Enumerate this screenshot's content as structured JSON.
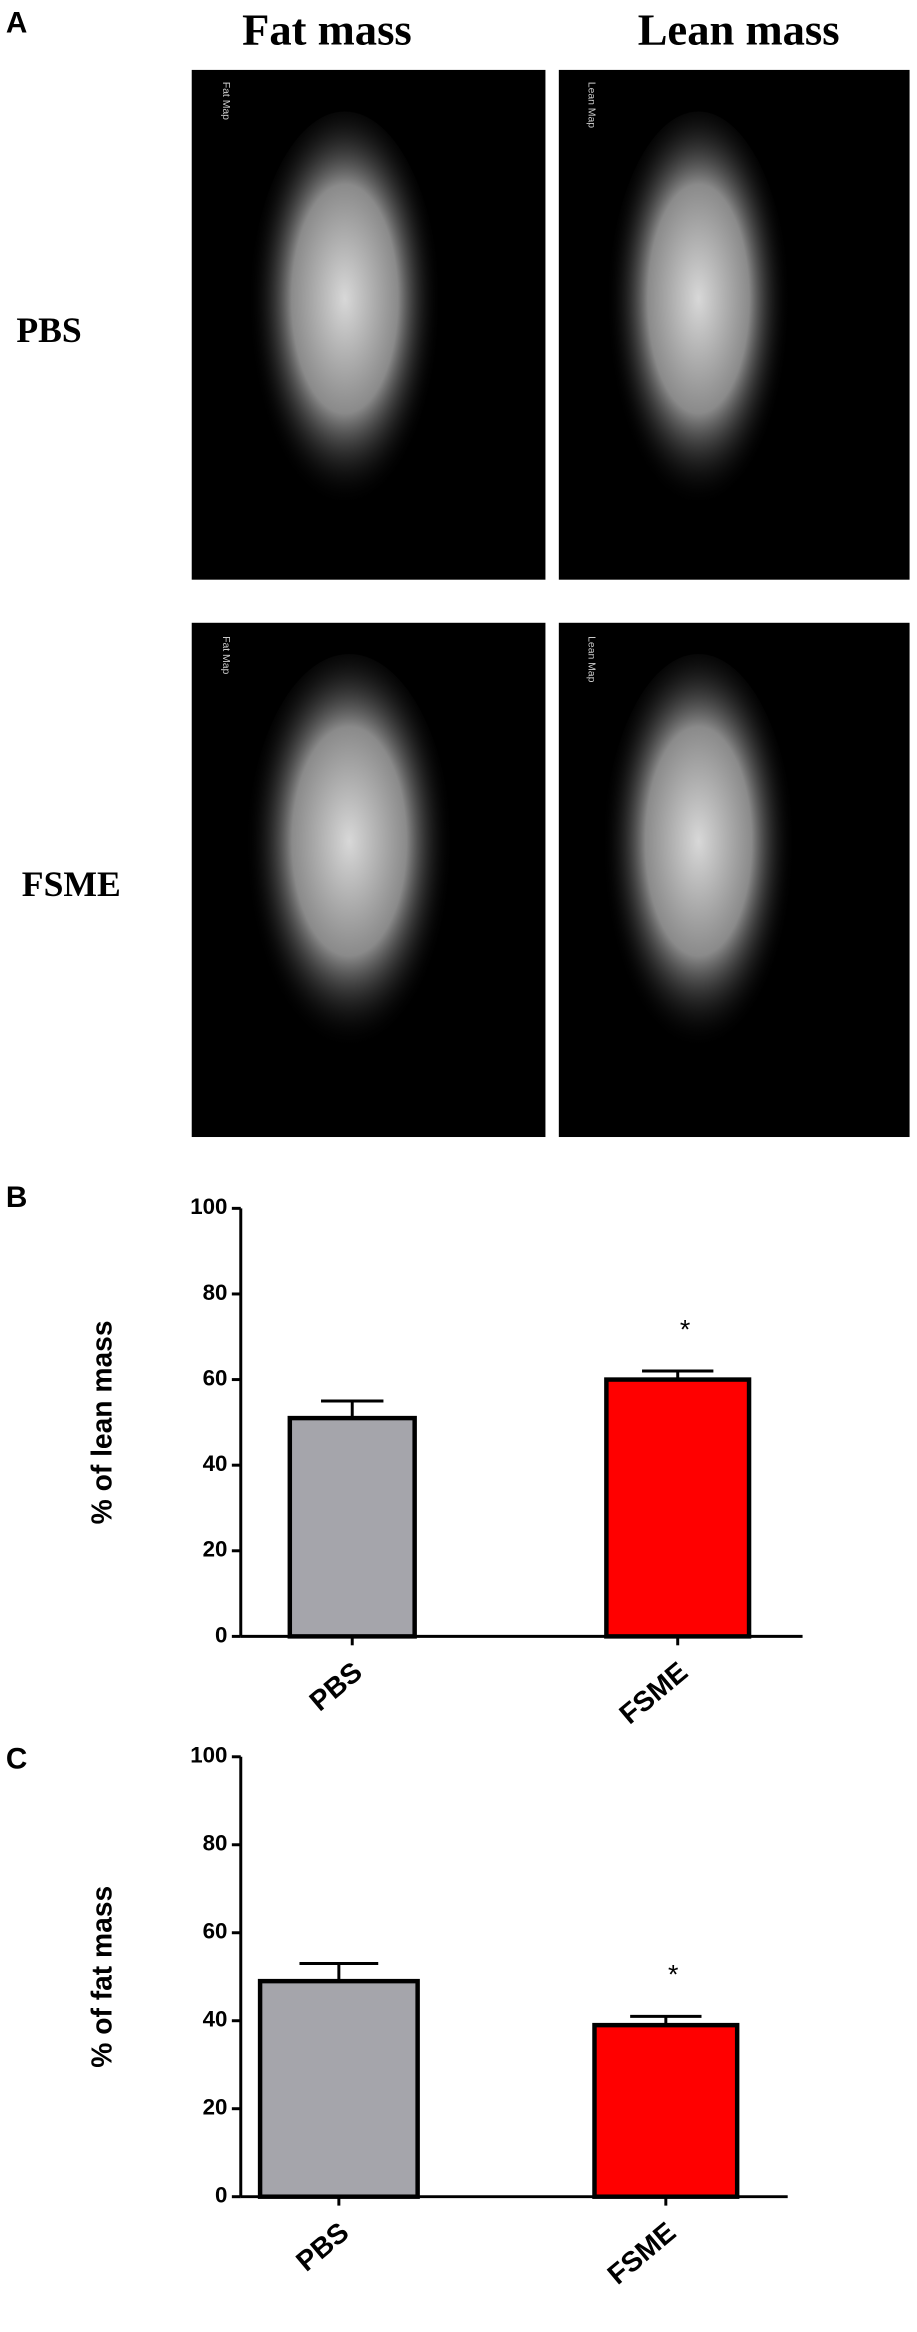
{
  "panel_a": {
    "label": "A",
    "columns": [
      "Fat mass",
      "Lean mass"
    ],
    "rows": [
      "PBS",
      "FSME"
    ],
    "map_labels": [
      "Fat Map",
      "Lean Map"
    ]
  },
  "chart_data": [
    {
      "type": "bar",
      "panel": "B",
      "ylabel": "% of lean mass",
      "categories": [
        "PBS",
        "FSME"
      ],
      "values": [
        51,
        60
      ],
      "errors": [
        4,
        2
      ],
      "colors": [
        "#a5a5ab",
        "#ff0000"
      ],
      "annotation": "*",
      "ylim": [
        0,
        100
      ],
      "yticks": [
        0,
        20,
        40,
        60,
        80,
        100
      ]
    },
    {
      "type": "bar",
      "panel": "C",
      "ylabel": "% of fat mass",
      "categories": [
        "PBS",
        "FSME"
      ],
      "values": [
        49,
        39
      ],
      "errors": [
        4,
        2
      ],
      "colors": [
        "#a5a5ab",
        "#ff0000"
      ],
      "annotation": "*",
      "ylim": [
        0,
        100
      ],
      "yticks": [
        0,
        20,
        40,
        60,
        80,
        100
      ]
    }
  ]
}
